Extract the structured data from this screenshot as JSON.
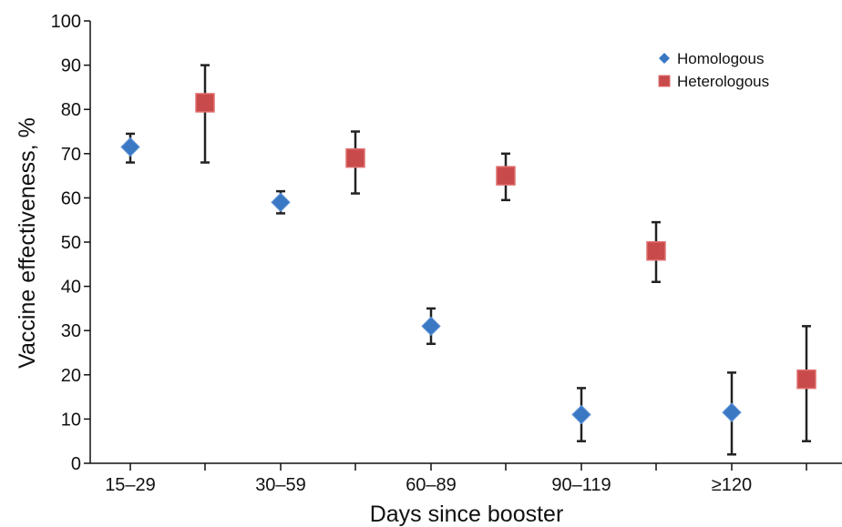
{
  "chart_data": {
    "type": "scatter",
    "title": "",
    "xlabel": "Days since booster",
    "ylabel": "Vaccine effectiveness, %",
    "ylim": [
      0,
      100
    ],
    "yticks": [
      0,
      10,
      20,
      30,
      40,
      50,
      60,
      70,
      80,
      90,
      100
    ],
    "categories": [
      "15–29",
      "30–59",
      "60–89",
      "90–119",
      "≥120"
    ],
    "grid": false,
    "legend_position": "top-right",
    "series": [
      {
        "name": "Homologous",
        "marker": "diamond",
        "color": "#3a78c4",
        "values": [
          71.5,
          59,
          31,
          11,
          11.5
        ],
        "lower": [
          68,
          56.5,
          27,
          5,
          2
        ],
        "upper": [
          74.5,
          61.5,
          35,
          17,
          20.5
        ]
      },
      {
        "name": "Heterologous",
        "marker": "square",
        "color": "#c94a4a",
        "values": [
          81.5,
          69,
          65,
          48,
          19
        ],
        "lower": [
          68,
          61,
          59.5,
          41,
          5
        ],
        "upper": [
          90,
          75,
          70,
          54.5,
          31
        ]
      }
    ]
  }
}
